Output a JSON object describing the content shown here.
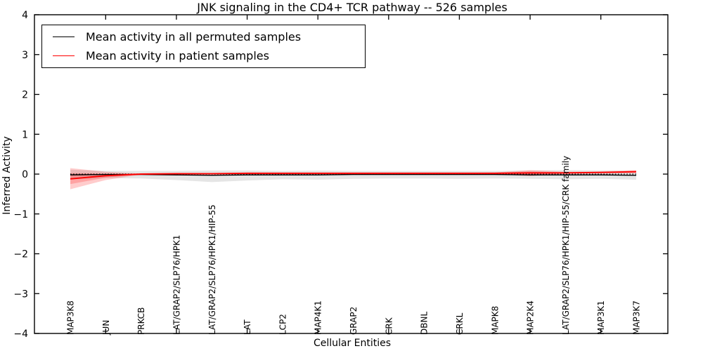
{
  "figure": {
    "background": "#ffffff",
    "accent_red": "#ff0000",
    "band_gray": "rgba(0,0,0,0.10)",
    "band_red": "rgba(255,0,0,0.20)"
  },
  "legend": {
    "entries": [
      {
        "label": "Mean activity in all permuted samples",
        "color": "#000000"
      },
      {
        "label": "Mean activity in patient samples",
        "color": "#ff0000"
      }
    ]
  },
  "chart_data": {
    "type": "line",
    "title": "JNK signaling in the CD4+ TCR pathway -- 526 samples",
    "xlabel": "Cellular Entities",
    "ylabel": "Inferred Activity",
    "ylim": [
      -4,
      4
    ],
    "grid": false,
    "legend_position": "upper left",
    "yticks": [
      {
        "v": -4,
        "label": "−4"
      },
      {
        "v": -3,
        "label": "−3"
      },
      {
        "v": -2,
        "label": "−2"
      },
      {
        "v": -1,
        "label": "−1"
      },
      {
        "v": 0,
        "label": "0"
      },
      {
        "v": 1,
        "label": "1"
      },
      {
        "v": 2,
        "label": "2"
      },
      {
        "v": 3,
        "label": "3"
      },
      {
        "v": 4,
        "label": "4"
      }
    ],
    "categories": [
      "MAP3K8",
      "JUN",
      "PRKCB",
      "LAT/GRAP2/SLP76/HPK1",
      "LAT/GRAP2/SLP76/HPK1/HIP-55",
      "LAT",
      "LCP2",
      "MAP4K1",
      "GRAP2",
      "CRK",
      "DBNL",
      "CRKL",
      "MAPK8",
      "MAP2K4",
      "LAT/GRAP2/SLP76/HPK1/HIP-55/CRK family",
      "MAP3K1",
      "MAP3K7"
    ],
    "bands": [
      {
        "name": "permuted-confidence-band",
        "color": "rgba(0,0,0,0.10)",
        "low": [
          -0.13,
          -0.1,
          -0.11,
          -0.15,
          -0.2,
          -0.16,
          -0.13,
          -0.14,
          -0.12,
          -0.11,
          -0.11,
          -0.12,
          -0.11,
          -0.12,
          -0.13,
          -0.12,
          -0.14
        ],
        "high": [
          0.11,
          0.08,
          0.08,
          0.08,
          0.09,
          0.09,
          0.08,
          0.09,
          0.08,
          0.08,
          0.08,
          0.08,
          0.08,
          0.09,
          0.1,
          0.09,
          0.08
        ]
      },
      {
        "name": "patient-confidence-band-outer",
        "color": "rgba(255,0,0,0.20)",
        "low": [
          -0.38,
          -0.15,
          -0.01,
          0.0,
          0.0,
          0.01,
          0.01,
          0.01,
          0.01,
          0.01,
          0.01,
          0.01,
          0.0,
          -0.05,
          0.01,
          0.02,
          0.02
        ],
        "high": [
          0.15,
          0.06,
          0.01,
          0.02,
          0.02,
          0.03,
          0.03,
          0.03,
          0.03,
          0.03,
          0.03,
          0.03,
          0.04,
          0.1,
          0.06,
          0.07,
          0.1
        ]
      },
      {
        "name": "patient-confidence-band-inner",
        "color": "rgba(255,0,0,0.20)",
        "low": [
          -0.25,
          -0.09,
          -0.005,
          0.005,
          0.005,
          0.015,
          0.015,
          0.015,
          0.015,
          0.015,
          0.015,
          0.015,
          0.01,
          -0.01,
          0.02,
          0.03,
          0.04
        ],
        "high": [
          0.02,
          0.01,
          0.005,
          0.015,
          0.015,
          0.025,
          0.025,
          0.025,
          0.025,
          0.025,
          0.025,
          0.025,
          0.03,
          0.065,
          0.045,
          0.055,
          0.08
        ]
      }
    ],
    "reference_line": {
      "y": 0,
      "color": "#000000",
      "style": "dotted"
    },
    "series": [
      {
        "name": "Mean activity in all permuted samples",
        "color": "#000000",
        "width": 1.4,
        "values": [
          -0.02,
          -0.01,
          -0.01,
          -0.02,
          -0.03,
          -0.02,
          -0.02,
          -0.02,
          -0.01,
          -0.01,
          -0.01,
          -0.01,
          -0.01,
          -0.02,
          -0.02,
          -0.02,
          -0.03
        ]
      },
      {
        "name": "Mean activity in patient samples",
        "color": "#ff0000",
        "width": 1.9,
        "values": [
          -0.12,
          -0.04,
          0.0,
          0.01,
          0.01,
          0.02,
          0.02,
          0.02,
          0.02,
          0.02,
          0.02,
          0.02,
          0.02,
          0.03,
          0.03,
          0.04,
          0.06
        ]
      }
    ]
  }
}
